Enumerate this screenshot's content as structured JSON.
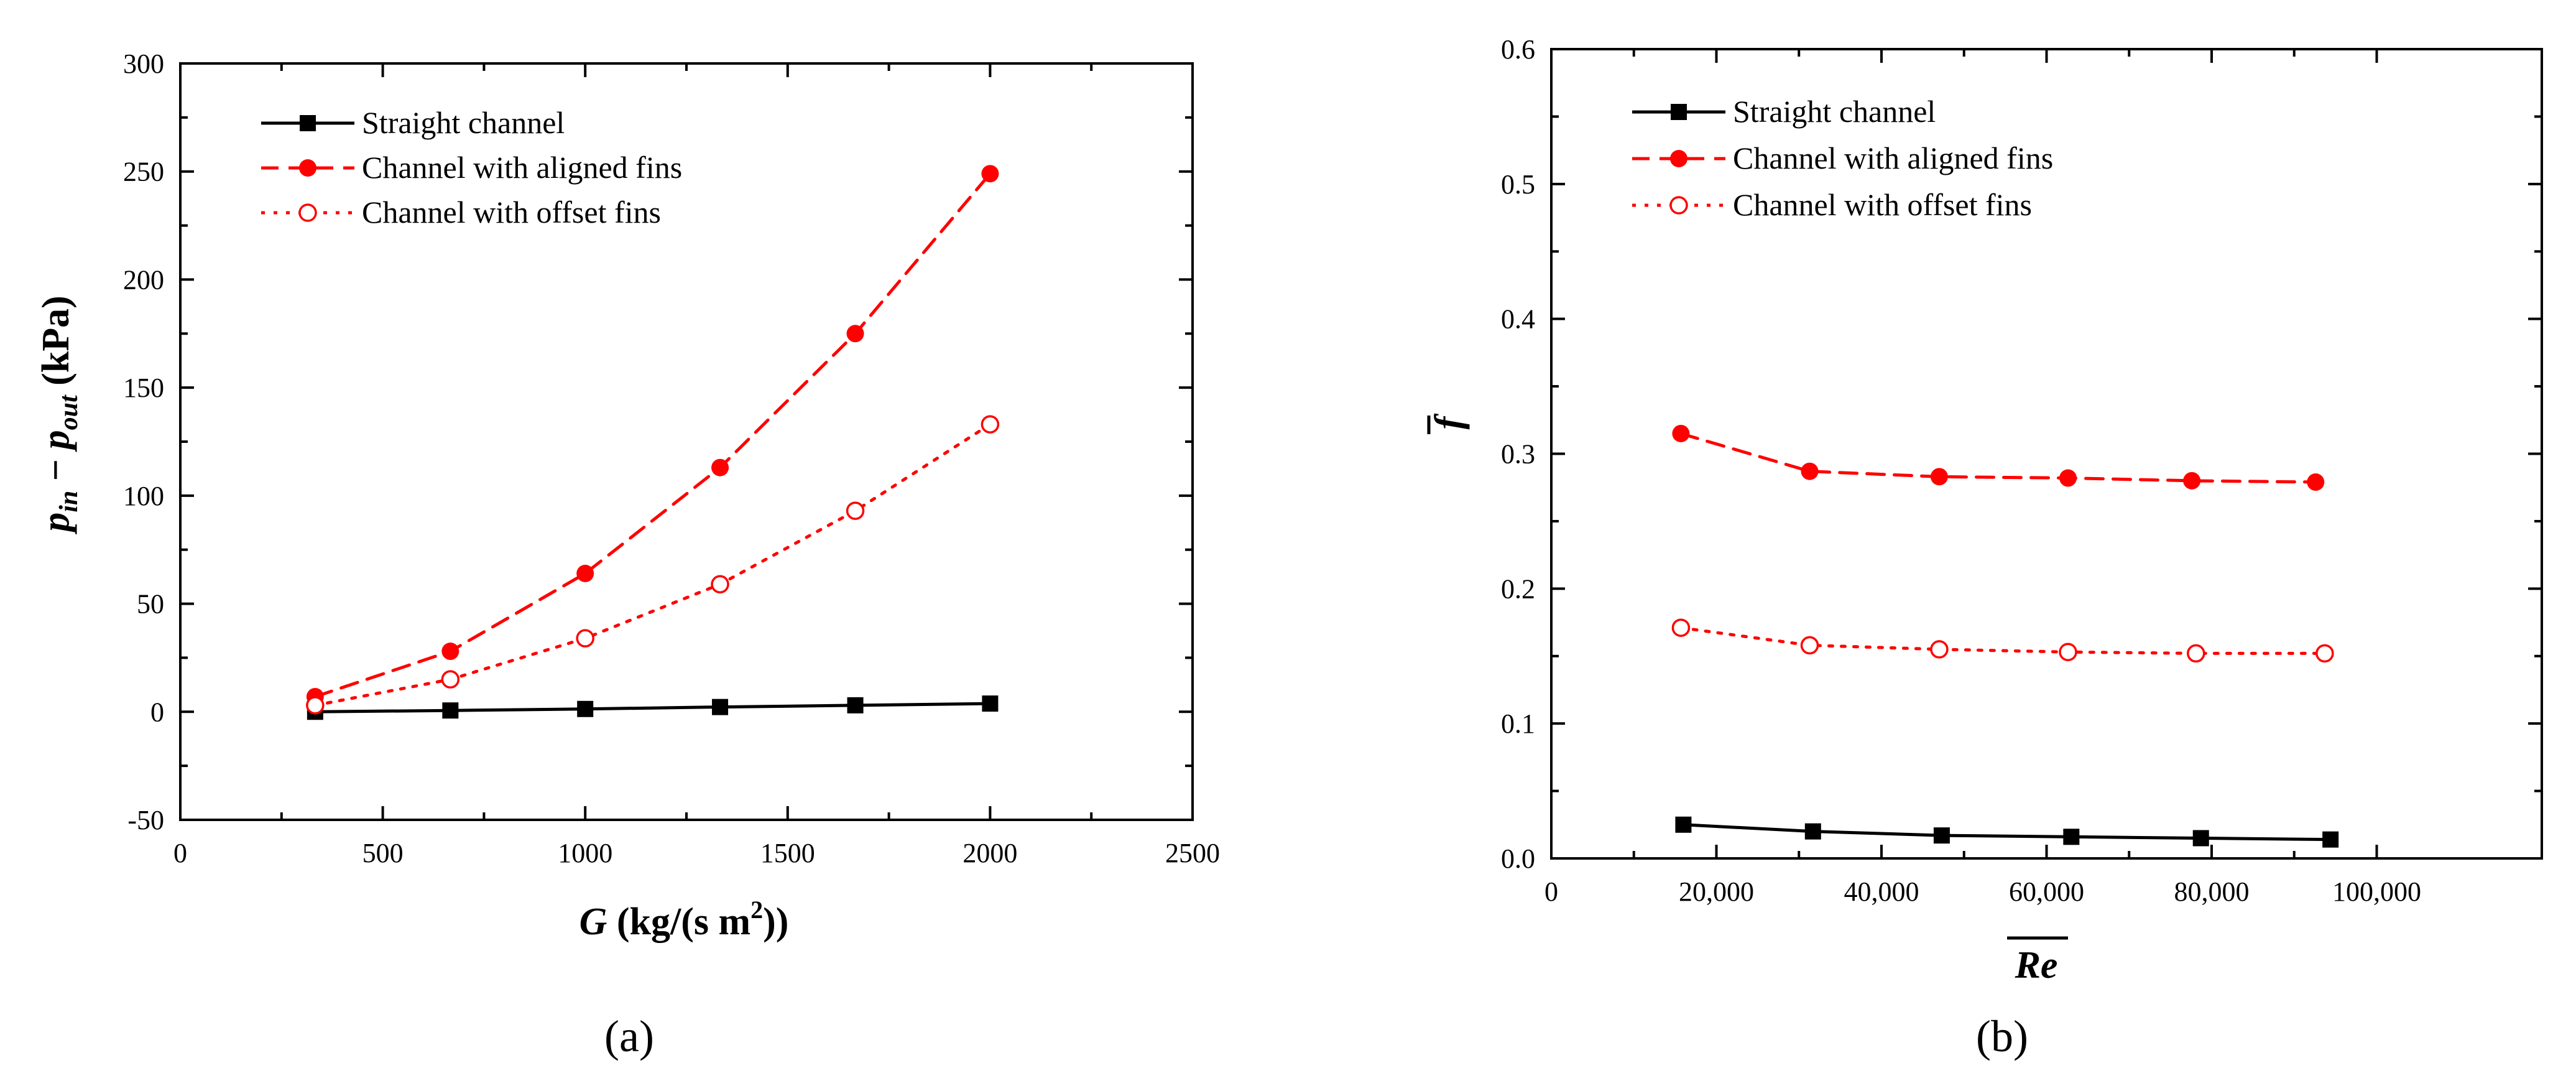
{
  "chart_data": [
    {
      "type": "line",
      "panel_label": "(a)",
      "xlabel": {
        "prefix": "G",
        "text": " (kg/(s m",
        "sup": "2",
        "suffix": "))"
      },
      "ylabel": {
        "p1": "p",
        "sub1": "in",
        "minus": " − ",
        "p2": "p",
        "sub2": "out",
        "unit": "  (kPa)"
      },
      "xlim": [
        0,
        2500
      ],
      "ylim": [
        -50,
        300
      ],
      "xticks": [
        0,
        500,
        1000,
        1500,
        2000,
        2500
      ],
      "xtick_labels": [
        "0",
        "500",
        "1000",
        "1500",
        "2000",
        "2500"
      ],
      "yticks": [
        -50,
        0,
        50,
        100,
        150,
        200,
        250,
        300
      ],
      "ytick_labels": [
        "-50",
        "0",
        "50",
        "100",
        "150",
        "200",
        "250",
        "300"
      ],
      "legend_position": "top-left",
      "series": [
        {
          "name": "Straight channel",
          "color": "#000000",
          "marker": "square",
          "line": "solid",
          "x": [
            333,
            667,
            1000,
            1333,
            1667,
            2000
          ],
          "y": [
            0,
            0.6,
            1.3,
            2.2,
            3.0,
            3.8
          ]
        },
        {
          "name": "Channel with aligned fins",
          "color": "#ff0000",
          "marker": "filled-circle",
          "line": "dashed",
          "x": [
            333,
            667,
            1000,
            1333,
            1667,
            2000
          ],
          "y": [
            7,
            28,
            64,
            113,
            175,
            249
          ]
        },
        {
          "name": "Channel with offset fins",
          "color": "#ff0000",
          "marker": "open-circle",
          "line": "dotted",
          "x": [
            333,
            667,
            1000,
            1333,
            1667,
            2000
          ],
          "y": [
            3,
            15,
            34,
            59,
            93,
            133
          ]
        }
      ]
    },
    {
      "type": "line",
      "panel_label": "(b)",
      "xlabel": {
        "text": "Re",
        "overline": true
      },
      "ylabel": {
        "text": "f",
        "overline": true
      },
      "xlim": [
        0,
        120000
      ],
      "ylim": [
        0,
        0.6
      ],
      "xticks": [
        0,
        20000,
        40000,
        60000,
        80000,
        100000
      ],
      "xtick_labels": [
        "0",
        "20,000",
        "40,000",
        "60,000",
        "80,000",
        "100,000"
      ],
      "yticks": [
        0,
        0.1,
        0.2,
        0.3,
        0.4,
        0.5,
        0.6
      ],
      "ytick_labels": [
        "0.0",
        "0.1",
        "0.2",
        "0.3",
        "0.4",
        "0.5",
        "0.6"
      ],
      "legend_position": "top-left",
      "series": [
        {
          "name": "Straight channel",
          "color": "#000000",
          "marker": "square",
          "line": "solid",
          "x": [
            16000,
            31700,
            47300,
            63000,
            78700,
            94400
          ],
          "y": [
            0.025,
            0.02,
            0.017,
            0.016,
            0.015,
            0.014
          ]
        },
        {
          "name": "Channel with aligned fins",
          "color": "#ff0000",
          "marker": "filled-circle",
          "line": "dashed",
          "x": [
            15700,
            31300,
            47000,
            62600,
            77600,
            92600
          ],
          "y": [
            0.315,
            0.287,
            0.283,
            0.282,
            0.28,
            0.279
          ]
        },
        {
          "name": "Channel with offset fins",
          "color": "#ff0000",
          "marker": "open-circle",
          "line": "dotted",
          "x": [
            15700,
            31300,
            47000,
            62600,
            78100,
            93700
          ],
          "y": [
            0.171,
            0.158,
            0.155,
            0.153,
            0.152,
            0.152
          ]
        }
      ]
    }
  ]
}
